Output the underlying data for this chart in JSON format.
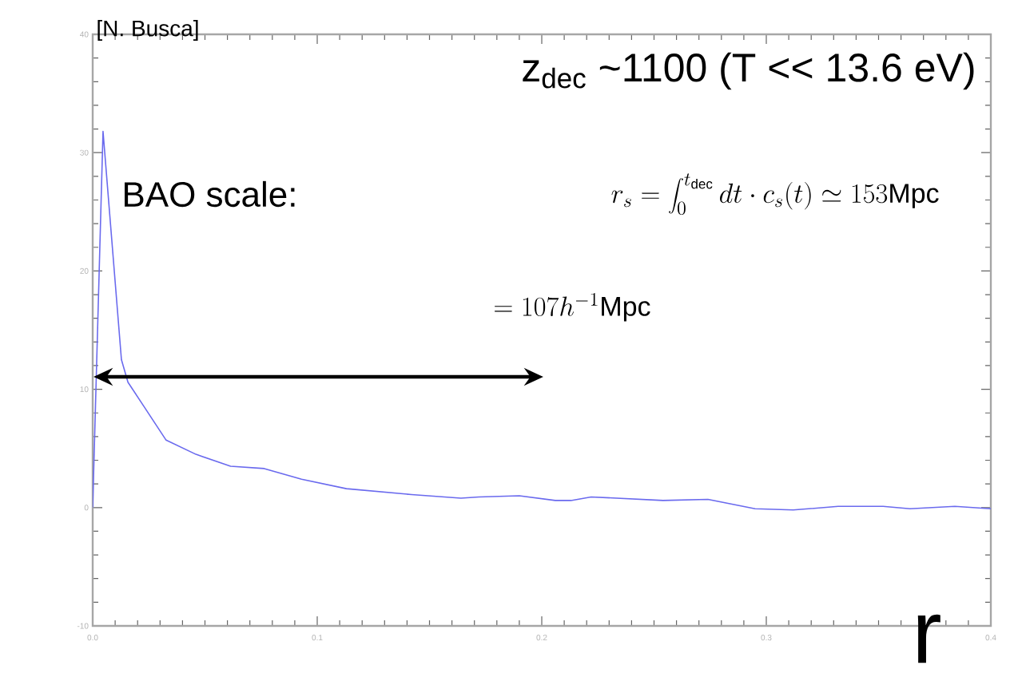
{
  "chart_data": {
    "type": "line",
    "xlabel": "r",
    "annotations": [
      "[N. Busca]",
      "z$_{dec}$ ~1100 (T << 13.6 eV)",
      "BAO scale:",
      "r_s = \\int_0^{t_{\\rm dec}} dt \\cdot c_s(t) \\simeq 153{\\rm Mpc}",
      "= 107h^{-1}{\\rm Mpc}"
    ],
    "series": [
      {
        "color": "#6a6aee",
        "x": [
          0.0,
          0.0046,
          0.0128,
          0.0157,
          0.023,
          0.0327,
          0.046,
          0.0614,
          0.0764,
          0.093,
          0.113,
          0.142,
          0.164,
          0.172,
          0.19,
          0.206,
          0.213,
          0.222,
          0.254,
          0.274,
          0.295,
          0.312,
          0.332,
          0.352,
          0.364,
          0.384,
          0.4
        ],
        "values": [
          0,
          31.8,
          12.5,
          10.6,
          8.5,
          5.7,
          4.5,
          3.5,
          3.3,
          2.4,
          1.6,
          1.1,
          0.8,
          0.9,
          1.0,
          0.6,
          0.6,
          0.9,
          0.6,
          0.7,
          -0.1,
          -0.2,
          0.1,
          0.1,
          -0.1,
          0.1,
          -0.1
        ]
      }
    ],
    "xlim": [
      0,
      0.4
    ],
    "ylim": [
      -10,
      40
    ],
    "xticks": [
      {
        "value": 0,
        "label": "0.0"
      },
      0.1,
      0.2,
      0.3,
      0.4
    ],
    "yticks": [
      -10,
      0,
      10,
      20,
      30,
      40
    ],
    "marker": "none",
    "line_style": "solid"
  }
}
